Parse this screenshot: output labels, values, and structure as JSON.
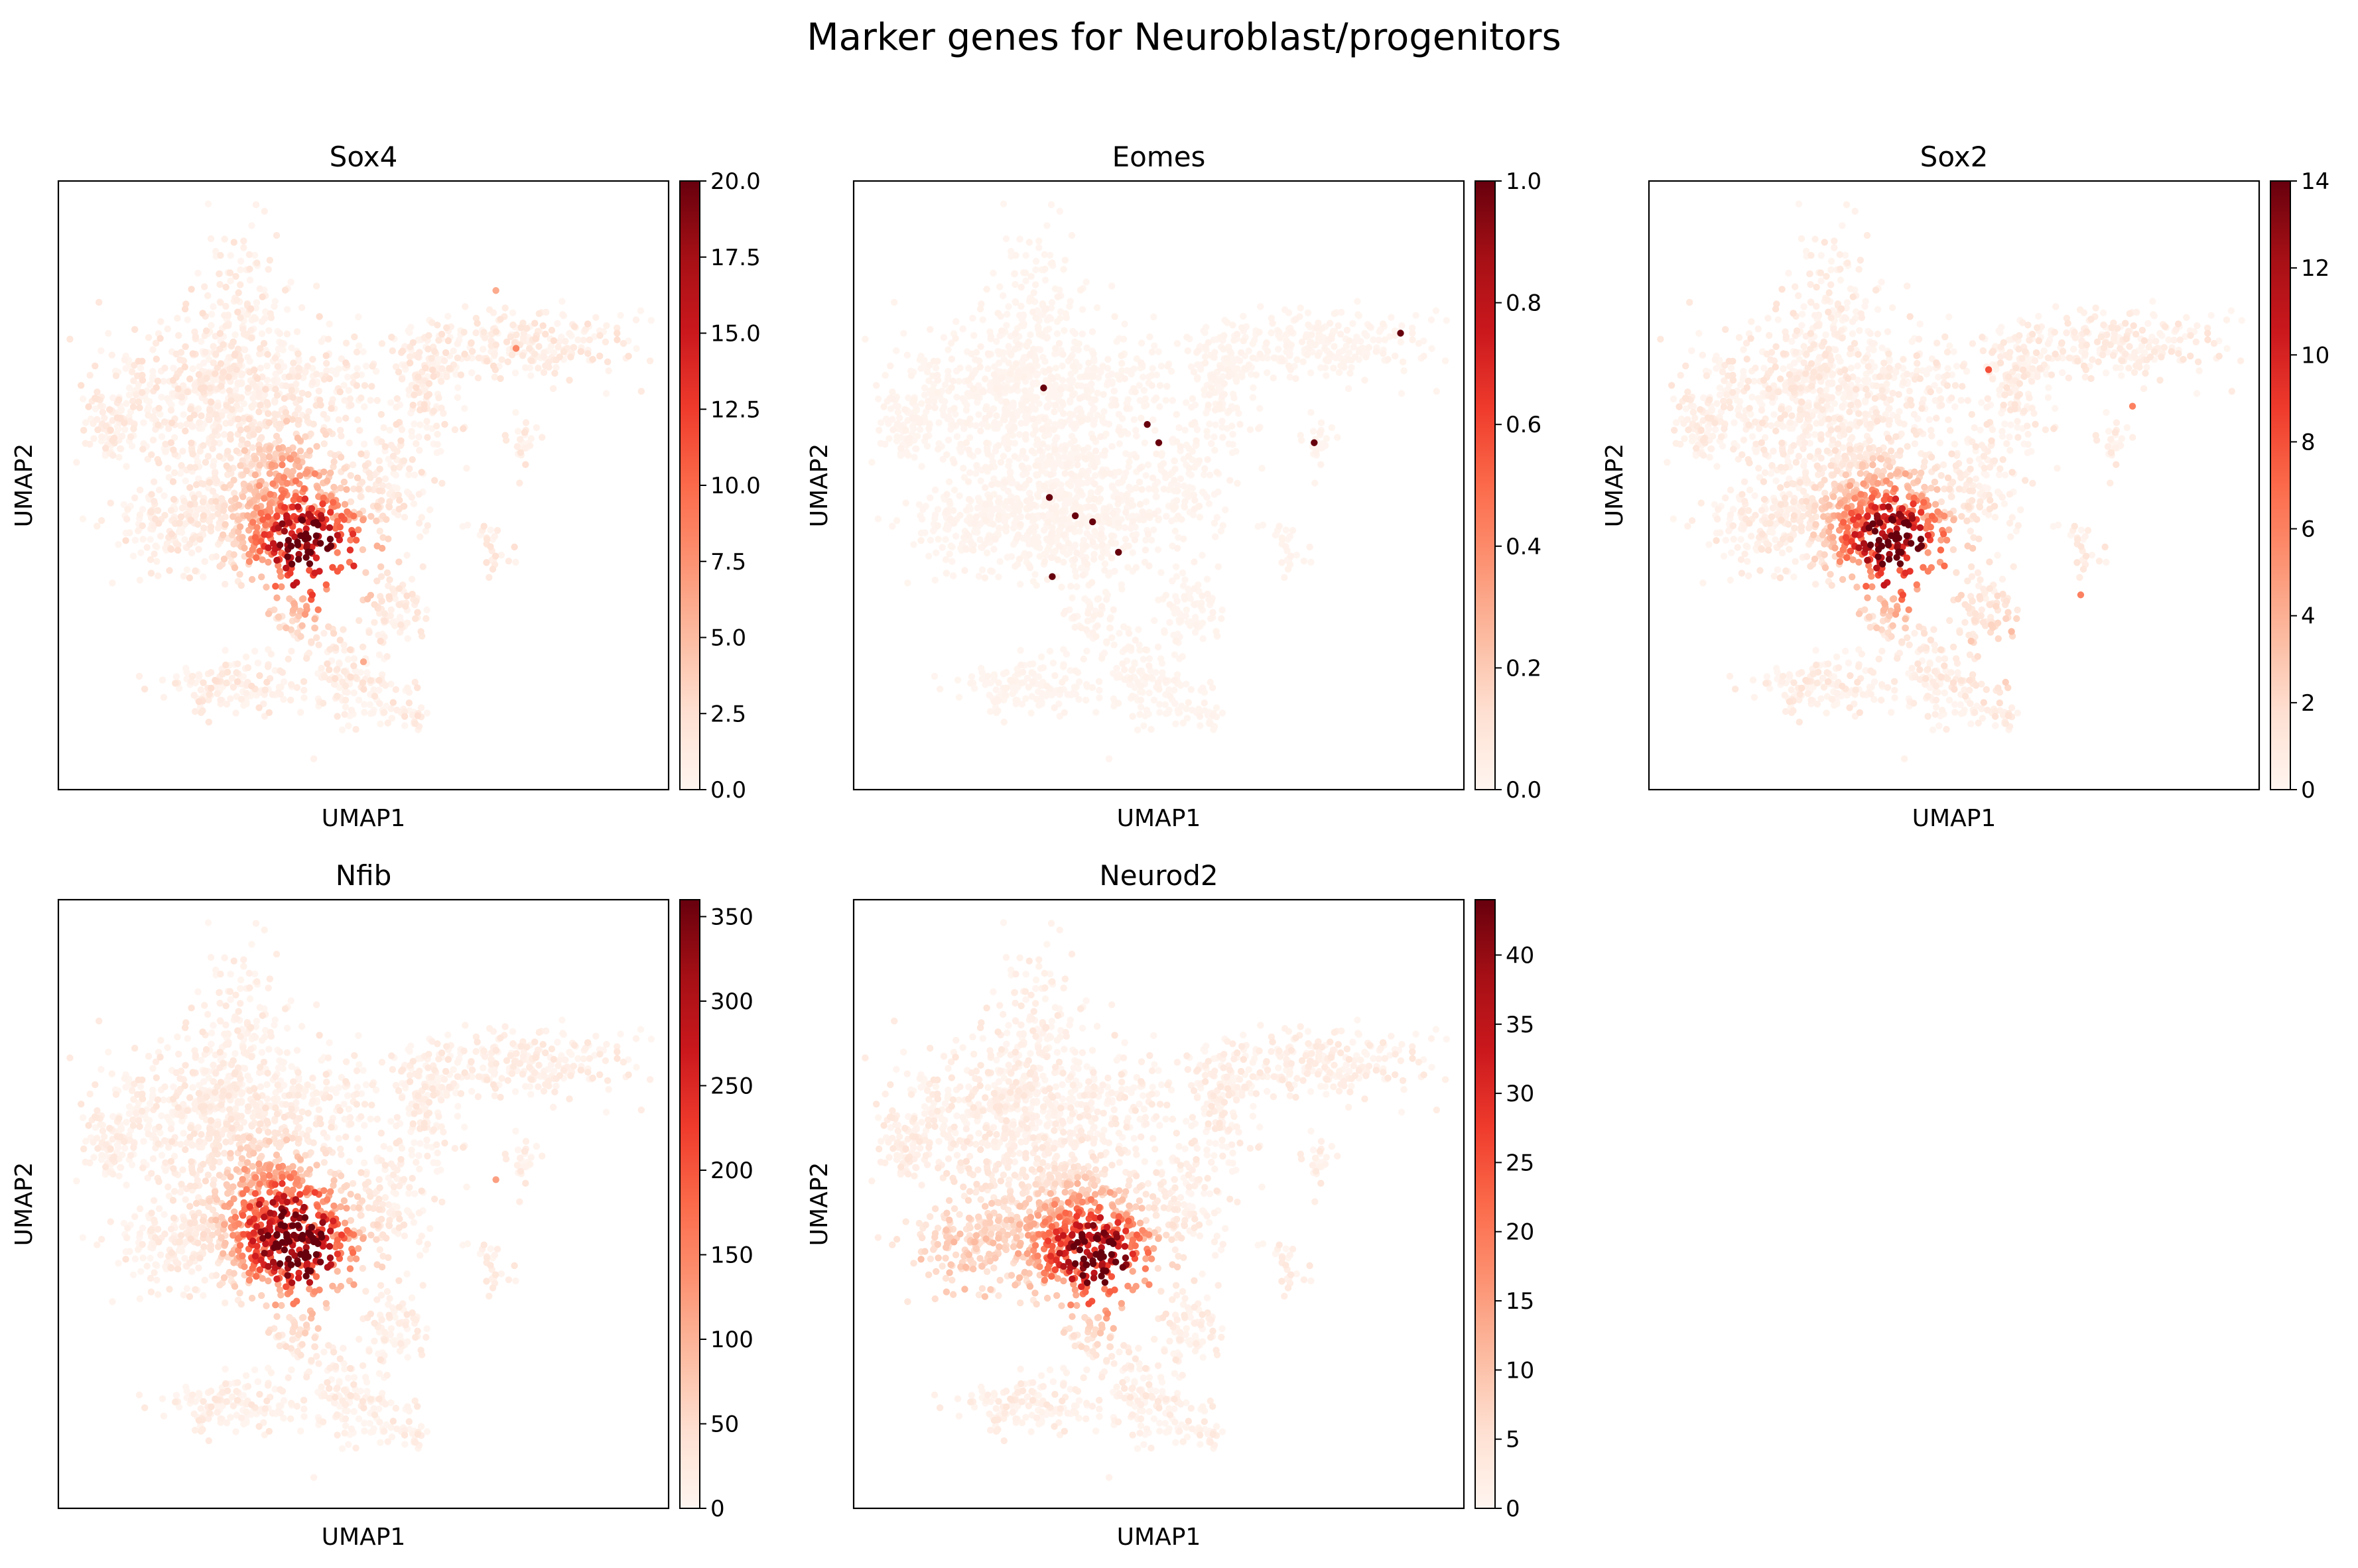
{
  "figure": {
    "title": "Marker genes for Neuroblast/progenitors"
  },
  "chart_data": [
    {
      "type": "scatter",
      "title": "Sox4",
      "xlabel": "UMAP1",
      "ylabel": "UMAP2",
      "colormap": "Reds",
      "color_range": [
        0,
        20
      ],
      "colorbar_ticks": [
        "0.0",
        "2.5",
        "5.0",
        "7.5",
        "10.0",
        "12.5",
        "15.0",
        "17.5",
        "20.0"
      ],
      "colorbar_tick_values": [
        0,
        2.5,
        5,
        7.5,
        10,
        12.5,
        15,
        17.5,
        20
      ],
      "background_level": 2.5,
      "hotspots": [
        {
          "x": 4.3,
          "y": 3.55,
          "peak": 20,
          "spread": 0.55
        },
        {
          "x": 3.75,
          "y": 3.7,
          "peak": 13,
          "spread": 0.55
        },
        {
          "x": 3.7,
          "y": 4.9,
          "peak": 6,
          "spread": 0.55
        }
      ],
      "isolated_points": [
        {
          "x": 7.65,
          "y": 6.95,
          "value": 8
        },
        {
          "x": 7.3,
          "y": 7.9,
          "value": 6
        },
        {
          "x": 5.0,
          "y": 1.8,
          "value": 6
        }
      ]
    },
    {
      "type": "scatter",
      "title": "Eomes",
      "xlabel": "UMAP1",
      "ylabel": "UMAP2",
      "colormap": "Reds",
      "color_range": [
        0,
        1
      ],
      "colorbar_ticks": [
        "0.0",
        "0.2",
        "0.4",
        "0.6",
        "0.8",
        "1.0"
      ],
      "colorbar_tick_values": [
        0,
        0.2,
        0.4,
        0.6,
        0.8,
        1
      ],
      "background_level": 0.02,
      "hotspots": [],
      "isolated_points": [
        {
          "x": 3.0,
          "y": 6.3,
          "value": 1
        },
        {
          "x": 4.8,
          "y": 5.7,
          "value": 1
        },
        {
          "x": 5.0,
          "y": 5.4,
          "value": 1
        },
        {
          "x": 3.1,
          "y": 4.5,
          "value": 1
        },
        {
          "x": 3.55,
          "y": 4.2,
          "value": 1
        },
        {
          "x": 3.85,
          "y": 4.1,
          "value": 1
        },
        {
          "x": 4.3,
          "y": 3.6,
          "value": 1
        },
        {
          "x": 3.15,
          "y": 3.2,
          "value": 1
        },
        {
          "x": 7.7,
          "y": 5.4,
          "value": 1
        },
        {
          "x": 9.2,
          "y": 7.2,
          "value": 1
        }
      ]
    },
    {
      "type": "scatter",
      "title": "Sox2",
      "xlabel": "UMAP1",
      "ylabel": "UMAP2",
      "colormap": "Reds",
      "color_range": [
        0,
        14
      ],
      "colorbar_ticks": [
        "0",
        "2",
        "4",
        "6",
        "8",
        "10",
        "12",
        "14"
      ],
      "colorbar_tick_values": [
        0,
        2,
        4,
        6,
        8,
        10,
        12,
        14
      ],
      "background_level": 1.5,
      "hotspots": [
        {
          "x": 4.1,
          "y": 3.55,
          "peak": 14,
          "spread": 0.55
        },
        {
          "x": 3.75,
          "y": 4.0,
          "peak": 9,
          "spread": 0.6
        },
        {
          "x": 5.9,
          "y": 2.0,
          "peak": 3,
          "spread": 0.5
        }
      ],
      "isolated_points": [
        {
          "x": 5.6,
          "y": 6.6,
          "value": 8
        },
        {
          "x": 8.1,
          "y": 6.0,
          "value": 6
        },
        {
          "x": 7.2,
          "y": 2.9,
          "value": 6
        }
      ]
    },
    {
      "type": "scatter",
      "title": "Nfib",
      "xlabel": "UMAP1",
      "ylabel": "UMAP2",
      "colormap": "Reds",
      "color_range": [
        0,
        360
      ],
      "colorbar_ticks": [
        "0",
        "50",
        "100",
        "150",
        "200",
        "250",
        "300",
        "350"
      ],
      "colorbar_tick_values": [
        0,
        50,
        100,
        150,
        200,
        250,
        300,
        350
      ],
      "background_level": 35,
      "hotspots": [
        {
          "x": 4.0,
          "y": 3.9,
          "peak": 360,
          "spread": 0.6
        },
        {
          "x": 3.6,
          "y": 4.3,
          "peak": 200,
          "spread": 0.6
        },
        {
          "x": 3.2,
          "y": 5.0,
          "peak": 90,
          "spread": 0.6
        }
      ],
      "isolated_points": [
        {
          "x": 7.3,
          "y": 5.1,
          "value": 120
        }
      ]
    },
    {
      "type": "scatter",
      "title": "Neurod2",
      "xlabel": "UMAP1",
      "ylabel": "UMAP2",
      "colormap": "Reds",
      "color_range": [
        0,
        44
      ],
      "colorbar_ticks": [
        "0",
        "5",
        "10",
        "15",
        "20",
        "25",
        "30",
        "35",
        "40"
      ],
      "colorbar_tick_values": [
        0,
        5,
        10,
        15,
        20,
        25,
        30,
        35,
        40
      ],
      "background_level": 4,
      "hotspots": [
        {
          "x": 4.1,
          "y": 3.7,
          "peak": 44,
          "spread": 0.55
        },
        {
          "x": 3.6,
          "y": 4.1,
          "peak": 25,
          "spread": 0.6
        },
        {
          "x": 1.6,
          "y": 3.8,
          "peak": 9,
          "spread": 0.9
        }
      ],
      "isolated_points": []
    }
  ]
}
